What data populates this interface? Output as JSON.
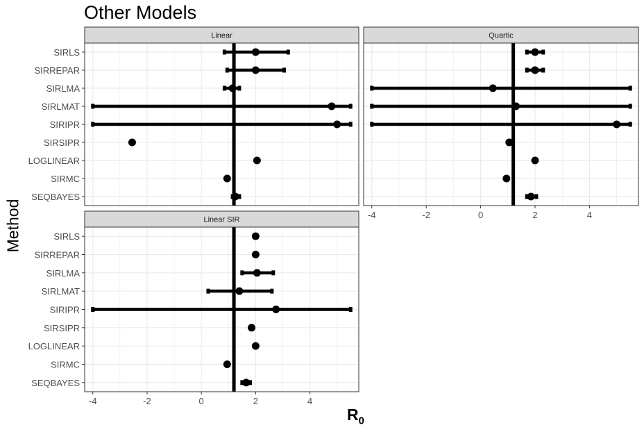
{
  "title": "Other Models",
  "ylabel": "Method",
  "xlabel_main": "R",
  "xlabel_sub": "0",
  "colors": {
    "strip_bg": "#d9d9d9",
    "grid": "#ebebeb",
    "mark": "#000000",
    "tick_text": "#4d4d4d"
  },
  "chart_data": {
    "type": "scatter",
    "subtype": "forest-plot with error bars",
    "xlim": [
      -4.3,
      5.8
    ],
    "xticks": [
      -4,
      -2,
      0,
      2,
      4
    ],
    "reference_line_x": 1.2,
    "categories": [
      "SIRLS",
      "SIRREPAR",
      "SIRLMA",
      "SIRLMAT",
      "SIRIPR",
      "SIRSIPR",
      "LOGLINEAR",
      "SIRMC",
      "SEQBAYES"
    ],
    "grid": true,
    "panels": [
      {
        "name": "Linear",
        "points": [
          {
            "method": "SIRLS",
            "x": 2.0,
            "lo": 0.85,
            "hi": 3.2
          },
          {
            "method": "SIRREPAR",
            "x": 2.0,
            "lo": 0.95,
            "hi": 3.05
          },
          {
            "method": "SIRLMA",
            "x": 1.15,
            "lo": 0.85,
            "hi": 1.4
          },
          {
            "method": "SIRLMAT",
            "x": 4.8,
            "lo": -4.0,
            "hi": 5.5
          },
          {
            "method": "SIRIPR",
            "x": 5.0,
            "lo": -4.0,
            "hi": 5.5
          },
          {
            "method": "SIRSIPR",
            "x": -2.55,
            "lo": null,
            "hi": null
          },
          {
            "method": "LOGLINEAR",
            "x": 2.05,
            "lo": null,
            "hi": null
          },
          {
            "method": "SIRMC",
            "x": 0.95,
            "lo": null,
            "hi": null
          },
          {
            "method": "SEQBAYES",
            "x": 1.25,
            "lo": 1.15,
            "hi": 1.4
          }
        ]
      },
      {
        "name": "Quartic",
        "points": [
          {
            "method": "SIRLS",
            "x": 2.0,
            "lo": 1.7,
            "hi": 2.3
          },
          {
            "method": "SIRREPAR",
            "x": 2.0,
            "lo": 1.7,
            "hi": 2.3
          },
          {
            "method": "SIRLMA",
            "x": 0.45,
            "lo": -4.0,
            "hi": 5.5
          },
          {
            "method": "SIRLMAT",
            "x": 1.3,
            "lo": -4.0,
            "hi": 5.5
          },
          {
            "method": "SIRIPR",
            "x": 5.0,
            "lo": -4.0,
            "hi": 5.5
          },
          {
            "method": "SIRSIPR",
            "x": 1.05,
            "lo": null,
            "hi": null
          },
          {
            "method": "LOGLINEAR",
            "x": 2.0,
            "lo": null,
            "hi": null
          },
          {
            "method": "SIRMC",
            "x": 0.95,
            "lo": null,
            "hi": null
          },
          {
            "method": "SEQBAYES",
            "x": 1.85,
            "lo": 1.7,
            "hi": 2.05
          }
        ]
      },
      {
        "name": "Linear SIR",
        "points": [
          {
            "method": "SIRLS",
            "x": 2.0,
            "lo": null,
            "hi": null
          },
          {
            "method": "SIRREPAR",
            "x": 2.0,
            "lo": null,
            "hi": null
          },
          {
            "method": "SIRLMA",
            "x": 2.05,
            "lo": 1.5,
            "hi": 2.65
          },
          {
            "method": "SIRLMAT",
            "x": 1.4,
            "lo": 0.25,
            "hi": 2.6
          },
          {
            "method": "SIRIPR",
            "x": 2.75,
            "lo": -4.0,
            "hi": 5.5
          },
          {
            "method": "SIRSIPR",
            "x": 1.85,
            "lo": null,
            "hi": null
          },
          {
            "method": "LOGLINEAR",
            "x": 2.0,
            "lo": null,
            "hi": null
          },
          {
            "method": "SIRMC",
            "x": 0.95,
            "lo": null,
            "hi": null
          },
          {
            "method": "SEQBAYES",
            "x": 1.65,
            "lo": 1.5,
            "hi": 1.8
          }
        ]
      }
    ]
  }
}
